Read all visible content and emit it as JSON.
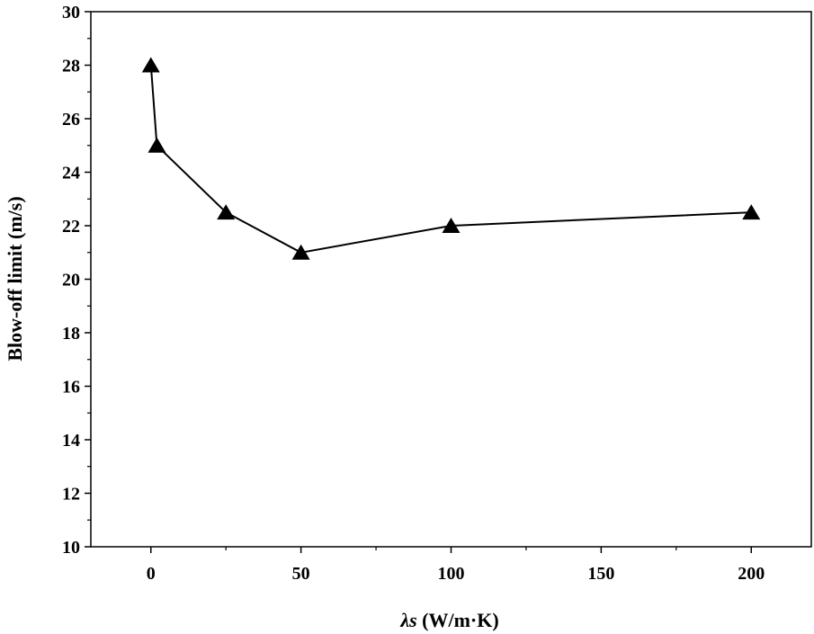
{
  "chart_data": {
    "type": "line",
    "title": "",
    "xlabel_symbol": "λs",
    "xlabel_units": " (W/m·K)",
    "ylabel": "Blow-off limit (m/s)",
    "xlim": [
      -20,
      220
    ],
    "ylim": [
      10,
      30
    ],
    "x_ticks": [
      0,
      50,
      100,
      150,
      200
    ],
    "y_ticks": [
      10,
      12,
      14,
      16,
      18,
      20,
      22,
      24,
      26,
      28,
      30
    ],
    "grid": false,
    "marker": "triangle",
    "series": [
      {
        "name": "Blow-off limit",
        "x": [
          0,
          2,
          25,
          50,
          100,
          200
        ],
        "y": [
          28,
          25,
          22.5,
          21,
          22,
          22.5
        ]
      }
    ]
  }
}
